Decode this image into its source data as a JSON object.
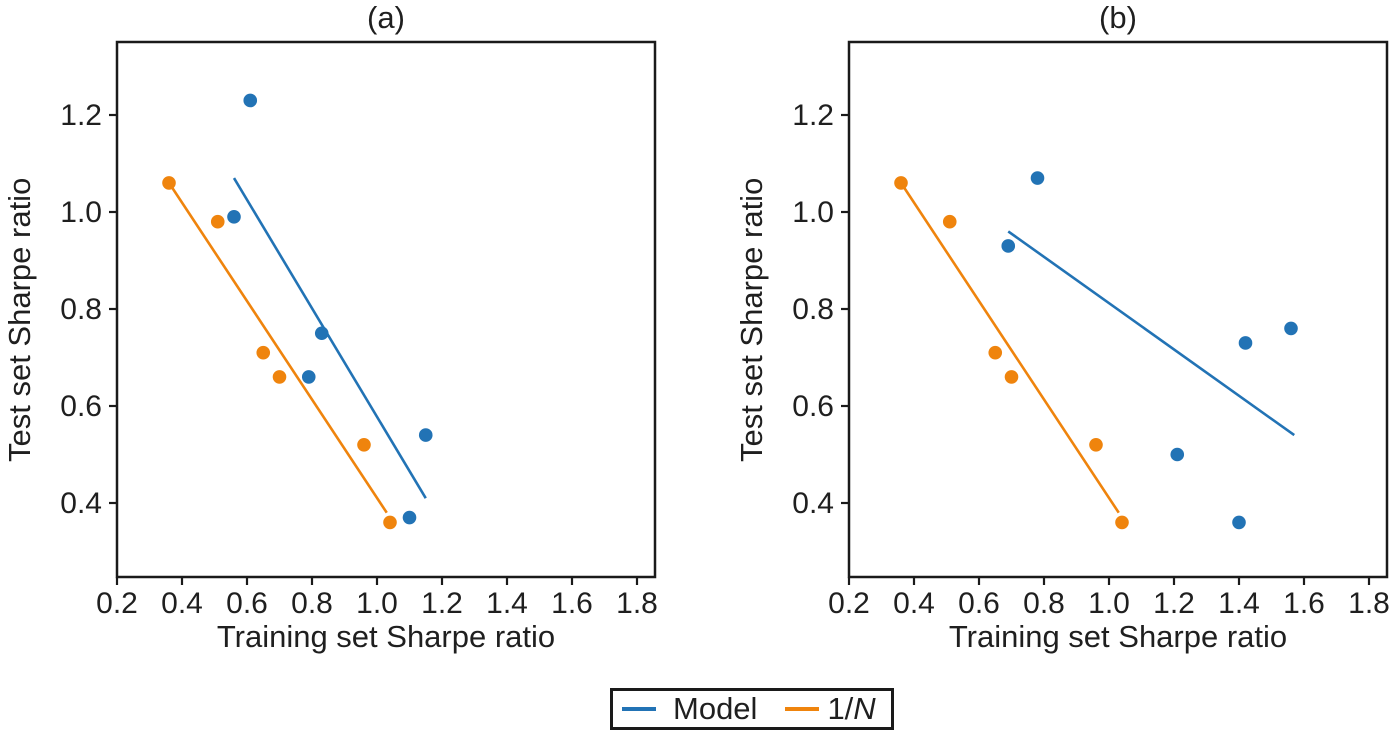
{
  "figure_text": {
    "panel_a_title": "(a)",
    "panel_b_title": "(b)",
    "xlabel": "Training set Sharpe ratio",
    "ylabel": "Test set Sharpe ratio"
  },
  "legend": {
    "position": "bottom-center",
    "items": [
      {
        "name": "Model",
        "label": "Model",
        "color": "#2273b5"
      },
      {
        "name": "1/N",
        "label_prefix": "1/",
        "label_italic": "N",
        "color": "#ef840d"
      }
    ]
  },
  "chart_data": [
    {
      "type": "scatter",
      "panel": "a",
      "title": "(a)",
      "xlabel": "Training set Sharpe ratio",
      "ylabel": "Test set Sharpe ratio",
      "xlim": [
        0.2,
        1.86
      ],
      "ylim": [
        0.25,
        1.35
      ],
      "x_ticks": [
        0.2,
        0.4,
        0.6,
        0.8,
        1.0,
        1.2,
        1.4,
        1.6,
        1.8
      ],
      "y_ticks": [
        0.4,
        0.6,
        0.8,
        1.0,
        1.2
      ],
      "grid": false,
      "series": [
        {
          "name": "Model",
          "color": "#2273b5",
          "points": [
            [
              0.61,
              1.23
            ],
            [
              0.56,
              0.99
            ],
            [
              0.83,
              0.75
            ],
            [
              0.79,
              0.66
            ],
            [
              1.15,
              0.54
            ],
            [
              1.1,
              0.37
            ]
          ],
          "fit_line": [
            [
              0.56,
              1.07
            ],
            [
              1.15,
              0.41
            ]
          ]
        },
        {
          "name": "1/N",
          "color": "#ef840d",
          "points": [
            [
              0.36,
              1.06
            ],
            [
              0.51,
              0.98
            ],
            [
              0.65,
              0.71
            ],
            [
              0.7,
              0.66
            ],
            [
              0.96,
              0.52
            ],
            [
              1.04,
              0.36
            ]
          ],
          "fit_line": [
            [
              0.36,
              1.06
            ],
            [
              1.03,
              0.38
            ]
          ]
        }
      ]
    },
    {
      "type": "scatter",
      "panel": "b",
      "title": "(b)",
      "xlabel": "Training set Sharpe ratio",
      "ylabel": "Test set Sharpe ratio",
      "xlim": [
        0.2,
        1.86
      ],
      "ylim": [
        0.25,
        1.35
      ],
      "x_ticks": [
        0.2,
        0.4,
        0.6,
        0.8,
        1.0,
        1.2,
        1.4,
        1.6,
        1.8
      ],
      "y_ticks": [
        0.4,
        0.6,
        0.8,
        1.0,
        1.2
      ],
      "grid": false,
      "series": [
        {
          "name": "Model",
          "color": "#2273b5",
          "points": [
            [
              0.78,
              1.07
            ],
            [
              0.69,
              0.93
            ],
            [
              1.21,
              0.5
            ],
            [
              1.42,
              0.73
            ],
            [
              1.56,
              0.76
            ],
            [
              1.4,
              0.36
            ]
          ],
          "fit_line": [
            [
              0.69,
              0.96
            ],
            [
              1.57,
              0.54
            ]
          ]
        },
        {
          "name": "1/N",
          "color": "#ef840d",
          "points": [
            [
              0.36,
              1.06
            ],
            [
              0.51,
              0.98
            ],
            [
              0.65,
              0.71
            ],
            [
              0.7,
              0.66
            ],
            [
              0.96,
              0.52
            ],
            [
              1.04,
              0.36
            ]
          ],
          "fit_line": [
            [
              0.36,
              1.06
            ],
            [
              1.03,
              0.38
            ]
          ]
        }
      ]
    }
  ]
}
